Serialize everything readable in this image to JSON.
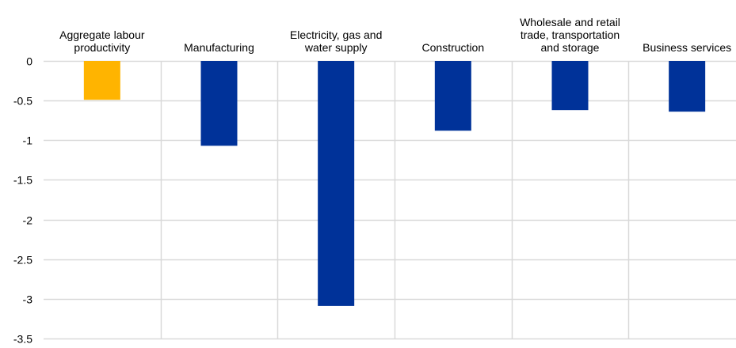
{
  "chart_data": {
    "type": "bar",
    "title": "",
    "xlabel": "",
    "ylabel": "",
    "categories": [
      [
        "Aggregate labour",
        "productivity"
      ],
      [
        "Manufacturing"
      ],
      [
        "Electricity, gas and",
        "water supply"
      ],
      [
        "Construction"
      ],
      [
        "Wholesale and retail",
        "trade, transportation",
        "and storage"
      ],
      [
        "Business services"
      ]
    ],
    "values": [
      -0.49,
      -1.07,
      -3.09,
      -0.88,
      -0.62,
      -0.64
    ],
    "bar_colors": [
      "#FFB400",
      "#003299",
      "#003299",
      "#003299",
      "#003299",
      "#003299"
    ],
    "ylim": [
      -3.5,
      0
    ],
    "yticks": [
      "0",
      "-0.5",
      "-1",
      "-1.5",
      "-2",
      "-2.5",
      "-3",
      "-3.5"
    ],
    "ytick_values": [
      0,
      -0.5,
      -1,
      -1.5,
      -2,
      -2.5,
      -3,
      -3.5
    ],
    "grid": true,
    "grid_color": "#D9D9D9",
    "legend": "none"
  }
}
